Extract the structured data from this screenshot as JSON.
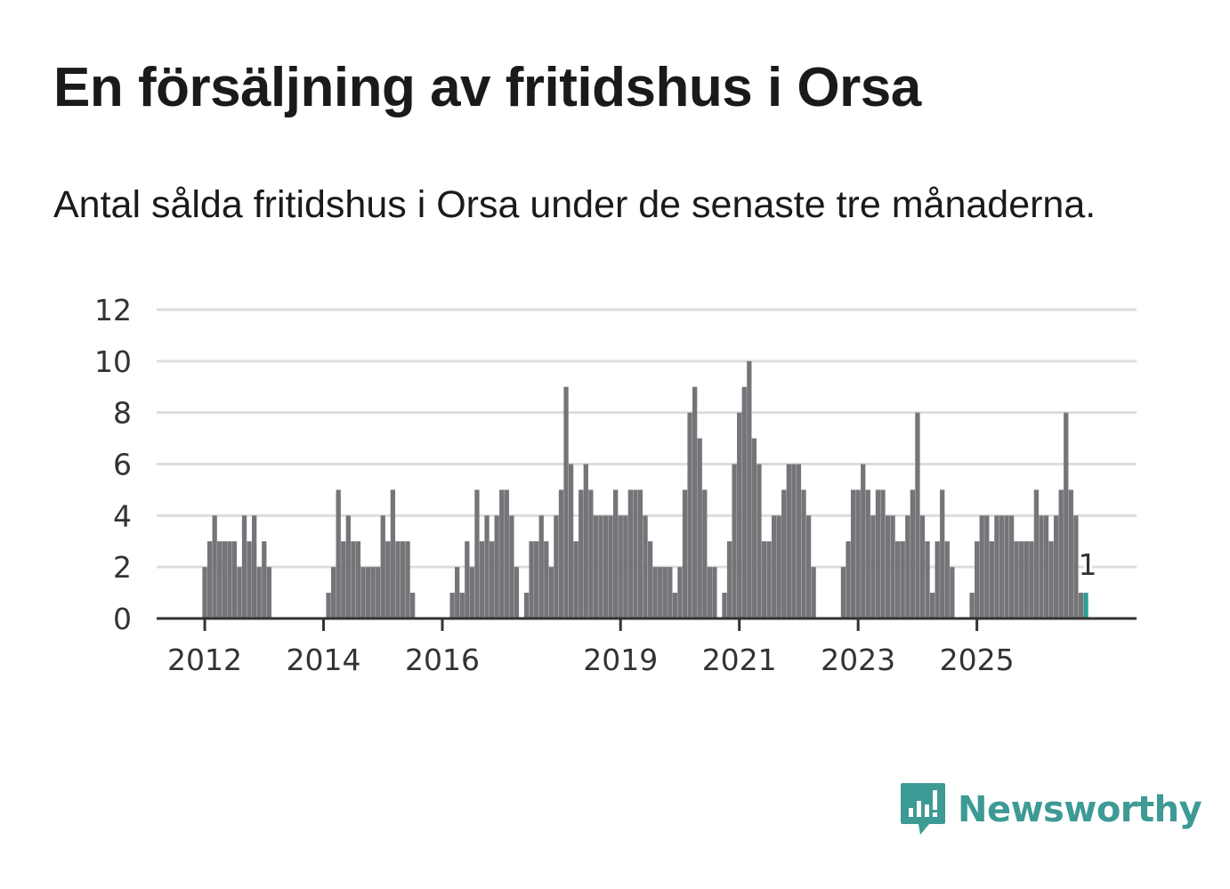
{
  "title": "En försäljning av fritidshus i Orsa",
  "subtitle": "Antal sålda fritidshus i Orsa under de senaste tre månaderna.",
  "logo": {
    "text": "Newsworthy",
    "icon": "bar-chart-speech-bubble-icon",
    "color": "#3d9a95"
  },
  "colors": {
    "bar": "#757478",
    "highlight": "#2a9d95",
    "grid": "#dddddd",
    "axis": "#333333"
  },
  "chart_data": {
    "type": "bar",
    "title": "",
    "xlabel": "",
    "ylabel": "",
    "ylim": [
      0,
      12
    ],
    "yticks": [
      0,
      2,
      4,
      6,
      8,
      10,
      12
    ],
    "xticks": [
      "2012",
      "2014",
      "2016",
      "2019",
      "2021",
      "2023",
      "2025"
    ],
    "grid": true,
    "start": "2011-04",
    "frequency": "monthly",
    "values": [
      0,
      0,
      0,
      0,
      0,
      0,
      0,
      0,
      0,
      2,
      3,
      4,
      3,
      3,
      3,
      3,
      2,
      4,
      3,
      4,
      2,
      3,
      2,
      0,
      0,
      0,
      0,
      0,
      0,
      0,
      0,
      0,
      0,
      0,
      1,
      2,
      5,
      3,
      4,
      3,
      3,
      2,
      2,
      2,
      2,
      4,
      3,
      5,
      3,
      3,
      3,
      1,
      0,
      0,
      0,
      0,
      0,
      0,
      0,
      1,
      2,
      1,
      3,
      2,
      5,
      3,
      4,
      3,
      4,
      5,
      5,
      4,
      2,
      0,
      1,
      3,
      3,
      4,
      3,
      2,
      4,
      5,
      9,
      6,
      3,
      5,
      6,
      5,
      4,
      4,
      4,
      4,
      5,
      4,
      4,
      5,
      5,
      5,
      4,
      3,
      2,
      2,
      2,
      2,
      1,
      2,
      5,
      8,
      9,
      7,
      5,
      2,
      2,
      0,
      1,
      3,
      6,
      8,
      9,
      10,
      7,
      6,
      3,
      3,
      4,
      4,
      5,
      6,
      6,
      6,
      5,
      4,
      2,
      0,
      0,
      0,
      0,
      0,
      2,
      3,
      5,
      5,
      6,
      5,
      4,
      5,
      5,
      4,
      4,
      3,
      3,
      4,
      5,
      8,
      4,
      3,
      1,
      3,
      5,
      3,
      2,
      0,
      0,
      0,
      1,
      3,
      4,
      4,
      3,
      4,
      4,
      4,
      4,
      3,
      3,
      3,
      3,
      5,
      4,
      4,
      3,
      4,
      5,
      8,
      5,
      4,
      1,
      1
    ],
    "highlight_last": true,
    "annotation": {
      "label": "1"
    }
  }
}
